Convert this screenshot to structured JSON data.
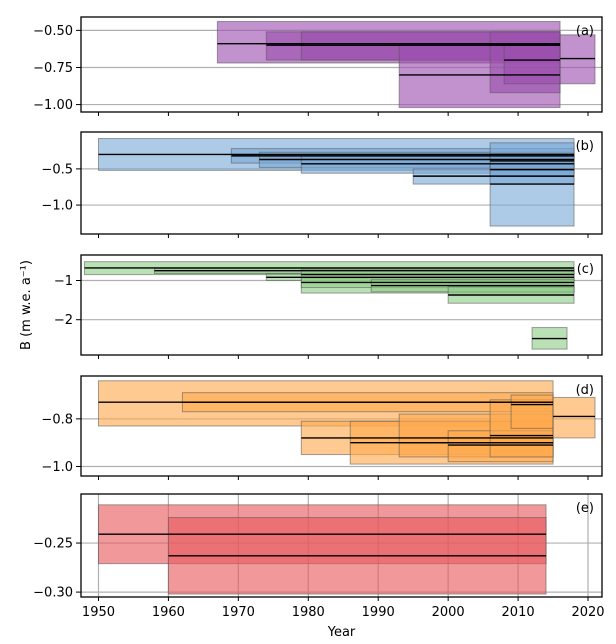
{
  "figure": {
    "xlabel": "Year",
    "ylabel": "B (m w.e. a⁻¹)",
    "xlim": [
      1947.5,
      2022
    ],
    "x_ticks": [
      1950,
      1960,
      1970,
      1980,
      1990,
      2000,
      2010,
      2020
    ]
  },
  "chart_data": [
    {
      "type": "bar",
      "panel": "(a)",
      "color": "#9b4fae",
      "ylim": [
        -1.05,
        -0.41
      ],
      "y_ticks": [
        -0.5,
        -0.75,
        -1.0
      ],
      "y_tick_labels": [
        "−0.50",
        "−0.75",
        "−1.00"
      ],
      "grid": true,
      "x_grid": false,
      "intervals": [
        {
          "start": 1967,
          "end": 2016,
          "value": -0.59,
          "low": -0.72,
          "high": -0.44
        },
        {
          "start": 1974,
          "end": 2016,
          "value": -0.6,
          "low": -0.7,
          "high": -0.51
        },
        {
          "start": 1979,
          "end": 2016,
          "value": -0.6,
          "low": -0.7,
          "high": -0.51
        },
        {
          "start": 1993,
          "end": 2016,
          "value": -0.8,
          "low": -1.02,
          "high": -0.59
        },
        {
          "start": 2006,
          "end": 2016,
          "value": -0.59,
          "low": -0.92,
          "high": -0.51
        },
        {
          "start": 2008,
          "end": 2016,
          "value": -0.7,
          "low": -0.86,
          "high": -0.6
        },
        {
          "start": 2016,
          "end": 2021,
          "value": -0.69,
          "low": -0.86,
          "high": -0.53
        }
      ]
    },
    {
      "type": "bar",
      "panel": "(b)",
      "color": "#7aa9d6",
      "ylim": [
        -1.4,
        0.01
      ],
      "y_ticks": [
        -0.5,
        -1.0
      ],
      "y_tick_labels": [
        "−0.5",
        "−1.0"
      ],
      "grid": true,
      "x_grid": false,
      "intervals": [
        {
          "start": 1950,
          "end": 2018,
          "value": -0.3,
          "low": -0.52,
          "high": -0.08
        },
        {
          "start": 1969,
          "end": 2018,
          "value": -0.32,
          "low": -0.42,
          "high": -0.22
        },
        {
          "start": 1973,
          "end": 2018,
          "value": -0.37,
          "low": -0.48,
          "high": -0.27
        },
        {
          "start": 1979,
          "end": 2018,
          "value": -0.43,
          "low": -0.56,
          "high": -0.3
        },
        {
          "start": 1995,
          "end": 2018,
          "value": -0.6,
          "low": -0.71,
          "high": -0.5
        },
        {
          "start": 2006,
          "end": 2018,
          "value": -0.71,
          "low": -1.29,
          "high": -0.14
        },
        {
          "start": 2006,
          "end": 2018,
          "value": -0.51,
          "low": -0.6,
          "high": -0.42
        },
        {
          "start": 2006,
          "end": 2018,
          "value": -0.39,
          "low": -0.5,
          "high": -0.29
        }
      ]
    },
    {
      "type": "bar",
      "panel": "(c)",
      "color": "#8fcd87",
      "ylim": [
        -2.9,
        -0.35
      ],
      "y_ticks": [
        -1,
        -2
      ],
      "y_tick_labels": [
        "−1",
        "−2"
      ],
      "grid": true,
      "x_grid": false,
      "intervals": [
        {
          "start": 1948,
          "end": 2018,
          "value": -0.68,
          "low": -0.85,
          "high": -0.52
        },
        {
          "start": 1958,
          "end": 2018,
          "value": -0.75,
          "low": -0.82,
          "high": -0.69
        },
        {
          "start": 1974,
          "end": 2018,
          "value": -0.92,
          "low": -1.0,
          "high": -0.83
        },
        {
          "start": 1979,
          "end": 2018,
          "value": -0.85,
          "low": -1.32,
          "high": -0.71
        },
        {
          "start": 1979,
          "end": 2018,
          "value": -1.05,
          "low": -1.18,
          "high": -0.93
        },
        {
          "start": 1989,
          "end": 2018,
          "value": -1.13,
          "low": -1.29,
          "high": -0.98
        },
        {
          "start": 2000,
          "end": 2018,
          "value": -1.37,
          "low": -1.58,
          "high": -1.16
        },
        {
          "start": 2012,
          "end": 2017,
          "value": -2.48,
          "low": -2.75,
          "high": -2.2
        }
      ]
    },
    {
      "type": "bar",
      "panel": "(d)",
      "color": "#ffa94d",
      "ylim": [
        -1.04,
        -0.62
      ],
      "y_ticks": [
        -0.8,
        -1.0
      ],
      "y_tick_labels": [
        "−0.8",
        "−1.0"
      ],
      "grid": true,
      "x_grid": false,
      "intervals": [
        {
          "start": 1950,
          "end": 2015,
          "value": -0.73,
          "low": -0.83,
          "high": -0.64
        },
        {
          "start": 1962,
          "end": 2015,
          "value": -0.73,
          "low": -0.77,
          "high": -0.69
        },
        {
          "start": 1979,
          "end": 2015,
          "value": -0.88,
          "low": -0.95,
          "high": -0.81
        },
        {
          "start": 1986,
          "end": 2015,
          "value": -0.9,
          "low": -0.99,
          "high": -0.81
        },
        {
          "start": 1993,
          "end": 2015,
          "value": -0.9,
          "low": -0.96,
          "high": -0.78
        },
        {
          "start": 2000,
          "end": 2015,
          "value": -0.91,
          "low": -0.98,
          "high": -0.85
        },
        {
          "start": 2006,
          "end": 2015,
          "value": -0.87,
          "low": -0.96,
          "high": -0.72
        },
        {
          "start": 2009,
          "end": 2015,
          "value": -0.74,
          "low": -0.84,
          "high": -0.7
        },
        {
          "start": 2015,
          "end": 2021,
          "value": -0.79,
          "low": -0.88,
          "high": -0.71
        }
      ]
    },
    {
      "type": "bar",
      "panel": "(e)",
      "color": "#e8585d",
      "ylim": [
        -0.305,
        -0.2
      ],
      "y_ticks": [
        -0.25,
        -0.3
      ],
      "y_tick_labels": [
        "−0.25",
        "−0.30"
      ],
      "grid": true,
      "x_grid": true,
      "intervals": [
        {
          "start": 1950,
          "end": 2014,
          "value": -0.241,
          "low": -0.271,
          "high": -0.211
        },
        {
          "start": 1960,
          "end": 2014,
          "value": -0.263,
          "low": -0.302,
          "high": -0.224
        }
      ]
    }
  ]
}
